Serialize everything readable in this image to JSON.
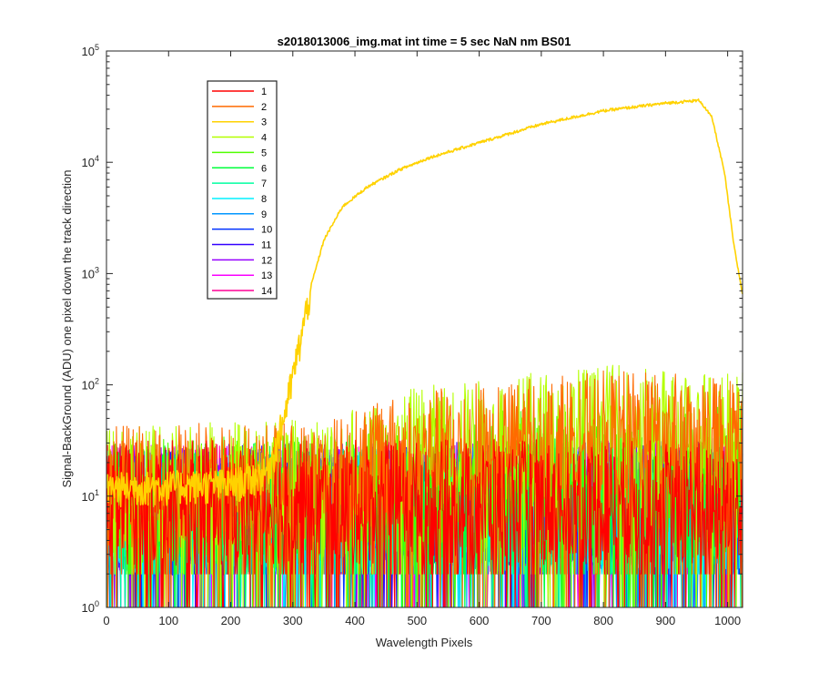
{
  "chart_data": {
    "type": "line",
    "title": "s2018013006_img.mat int time = 5 sec  NaN nm BS01",
    "xlabel": "Wavelength Pixels",
    "ylabel": "Signal-BackGround (ADU) one pixel down the track direction",
    "xlim": [
      0,
      1024
    ],
    "ylim": [
      1,
      100000
    ],
    "yscale": "log",
    "grid": false,
    "legend_position": "top-left",
    "x_ticks": [
      "0",
      "100",
      "200",
      "300",
      "400",
      "500",
      "600",
      "700",
      "800",
      "900",
      "1000"
    ],
    "y_ticks": [
      {
        "base": "10",
        "exp": "0"
      },
      {
        "base": "10",
        "exp": "1"
      },
      {
        "base": "10",
        "exp": "2"
      },
      {
        "base": "10",
        "exp": "3"
      },
      {
        "base": "10",
        "exp": "4"
      },
      {
        "base": "10",
        "exp": "5"
      }
    ],
    "series": [
      {
        "name": "1",
        "color": "#FF0000",
        "profile": "noise",
        "level": [
          [
            0,
            10
          ],
          [
            1024,
            10
          ]
        ]
      },
      {
        "name": "2",
        "color": "#FF6A00",
        "profile": "noise",
        "level": [
          [
            0,
            14
          ],
          [
            350,
            15
          ],
          [
            500,
            28
          ],
          [
            800,
            42
          ],
          [
            1024,
            38
          ]
        ]
      },
      {
        "name": "3",
        "color": "#FFD200",
        "profile": "signal",
        "points": [
          [
            0,
            12
          ],
          [
            200,
            13
          ],
          [
            255,
            16
          ],
          [
            270,
            25
          ],
          [
            285,
            50
          ],
          [
            300,
            120
          ],
          [
            315,
            300
          ],
          [
            330,
            800
          ],
          [
            350,
            2000
          ],
          [
            380,
            4000
          ],
          [
            420,
            6000
          ],
          [
            470,
            8500
          ],
          [
            520,
            11000
          ],
          [
            600,
            15000
          ],
          [
            700,
            22000
          ],
          [
            800,
            29000
          ],
          [
            900,
            34000
          ],
          [
            955,
            36000
          ],
          [
            975,
            25000
          ],
          [
            995,
            8000
          ],
          [
            1010,
            1800
          ],
          [
            1024,
            650
          ]
        ]
      },
      {
        "name": "4",
        "color": "#B4FF00",
        "profile": "noise",
        "level": [
          [
            0,
            13
          ],
          [
            350,
            16
          ],
          [
            500,
            30
          ],
          [
            800,
            48
          ],
          [
            1024,
            40
          ]
        ]
      },
      {
        "name": "5",
        "color": "#50FF00",
        "profile": "noise",
        "level": [
          [
            0,
            10
          ],
          [
            350,
            11
          ],
          [
            600,
            18
          ],
          [
            1024,
            20
          ]
        ]
      },
      {
        "name": "6",
        "color": "#00FF3C",
        "profile": "noise",
        "level": [
          [
            0,
            9
          ],
          [
            1024,
            11
          ]
        ]
      },
      {
        "name": "7",
        "color": "#00FFA0",
        "profile": "noise",
        "level": [
          [
            0,
            8
          ],
          [
            1024,
            9
          ]
        ]
      },
      {
        "name": "8",
        "color": "#00F0FF",
        "profile": "noise",
        "level": [
          [
            0,
            8
          ],
          [
            1024,
            9
          ]
        ]
      },
      {
        "name": "9",
        "color": "#0096FF",
        "profile": "noise",
        "level": [
          [
            0,
            8
          ],
          [
            1024,
            9
          ]
        ]
      },
      {
        "name": "10",
        "color": "#0032FF",
        "profile": "noise",
        "level": [
          [
            0,
            8
          ],
          [
            1024,
            9
          ]
        ]
      },
      {
        "name": "11",
        "color": "#3200FF",
        "profile": "noise",
        "level": [
          [
            0,
            9
          ],
          [
            1024,
            10
          ]
        ]
      },
      {
        "name": "12",
        "color": "#9600FF",
        "profile": "noise",
        "level": [
          [
            0,
            9
          ],
          [
            1024,
            10
          ]
        ]
      },
      {
        "name": "13",
        "color": "#FA00FF",
        "profile": "noise",
        "level": [
          [
            0,
            9
          ],
          [
            1024,
            10
          ]
        ]
      },
      {
        "name": "14",
        "color": "#FF0096",
        "profile": "noise",
        "level": [
          [
            0,
            9
          ],
          [
            1024,
            10
          ]
        ]
      }
    ]
  }
}
